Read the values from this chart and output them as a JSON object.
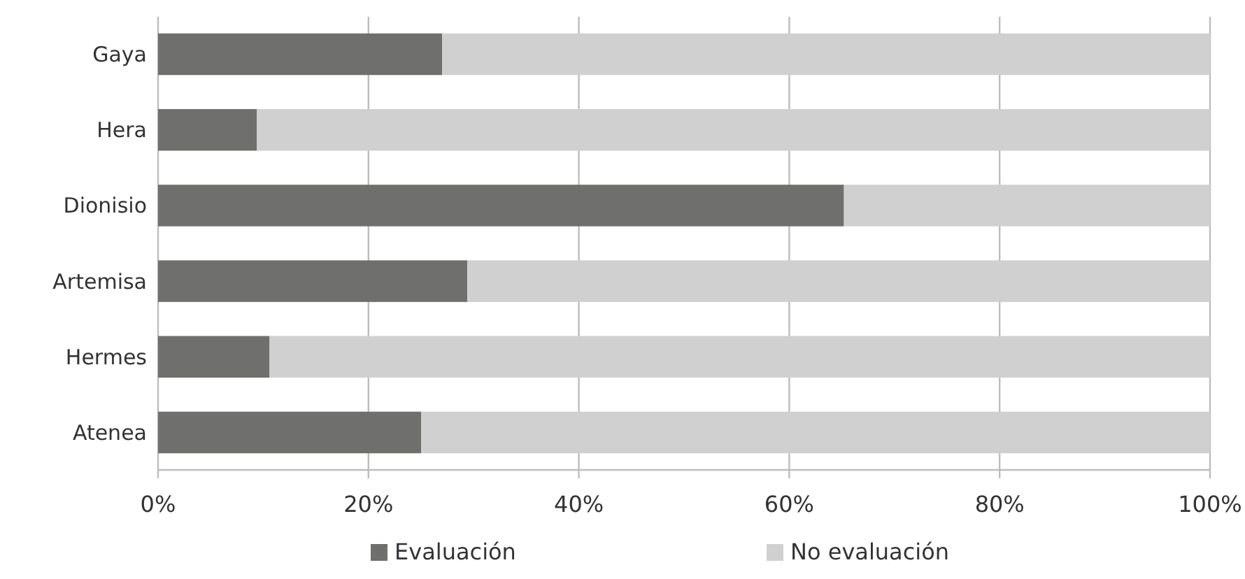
{
  "chart_data": {
    "type": "bar",
    "orientation": "horizontal",
    "stacked": true,
    "categories": [
      "Gaya",
      "Hera",
      "Dionisio",
      "Artemisa",
      "Hermes",
      "Atenea"
    ],
    "series": [
      {
        "name": "Evaluación",
        "color": "#6f6f6d",
        "values": [
          27,
          9.4,
          65.2,
          29.4,
          10.6,
          25
        ]
      },
      {
        "name": "No evaluación",
        "color": "#d0d0d0",
        "values": [
          73,
          90.6,
          34.8,
          70.6,
          89.4,
          75
        ]
      }
    ],
    "xlim": [
      0,
      100
    ],
    "xticks": [
      {
        "value": 0,
        "label": "0%"
      },
      {
        "value": 20,
        "label": "20%"
      },
      {
        "value": 40,
        "label": "40%"
      },
      {
        "value": 60,
        "label": "60%"
      },
      {
        "value": 80,
        "label": "80%"
      },
      {
        "value": 100,
        "label": "100%"
      }
    ],
    "grid": "x",
    "legend": "bottom"
  }
}
